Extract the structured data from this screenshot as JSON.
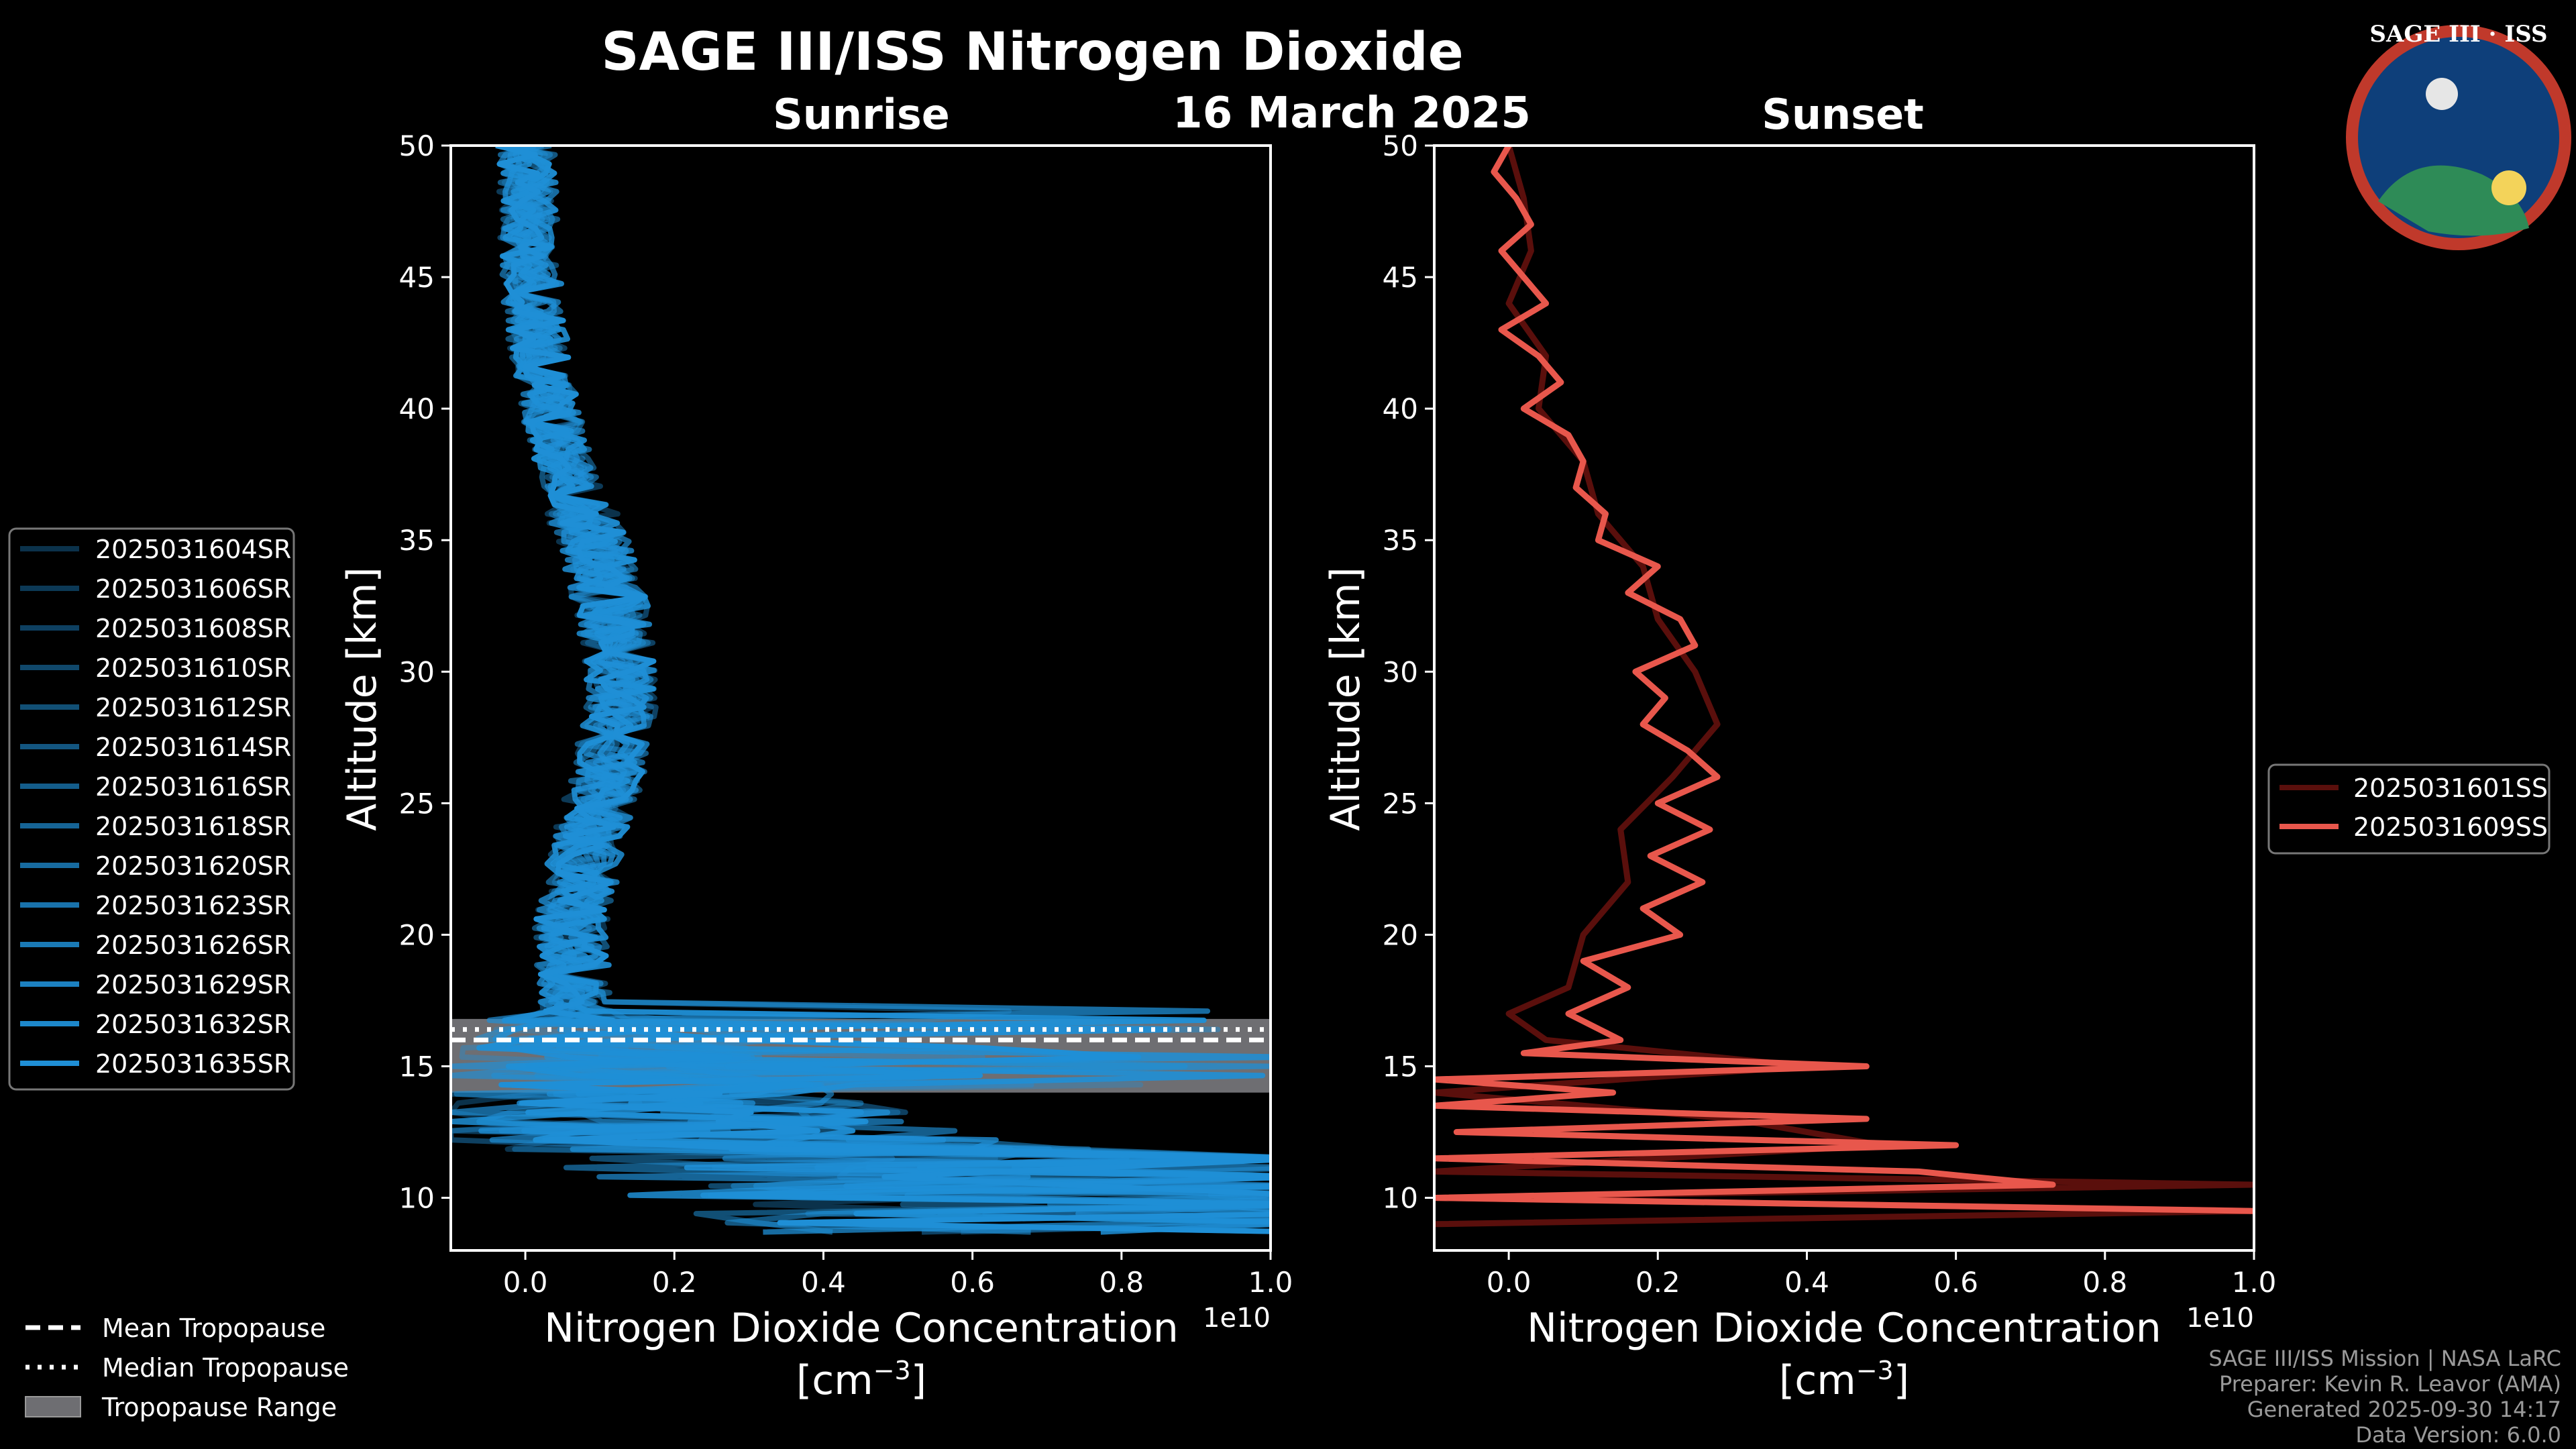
{
  "figure": {
    "title": "SAGE III/ISS Nitrogen Dioxide",
    "date": "16 March 2025",
    "logo_text": "SAGE III · ISS",
    "credits": [
      "SAGE III/ISS Mission | NASA LaRC",
      "Preparer: Kevin R. Leavor (AMA)",
      "Generated 2025-09-30 14:17",
      "Data Version: 6.0.0"
    ]
  },
  "shared_legend": {
    "mean_label": "Mean Tropopause",
    "median_label": "Median Tropopause",
    "range_label": "Tropopause Range"
  },
  "colors": {
    "sunrise": "#1f8fd6",
    "sunset": "#e8574c",
    "tropopause_range": "#6e6e72"
  },
  "chart_data": [
    {
      "type": "line",
      "panel": "Sunrise",
      "title": "Sunrise",
      "xlabel": "Nitrogen Dioxide Concentration",
      "xlabel_unit": "[cm",
      "xlabel_unit_exp": "−3",
      "xlabel_unit_close": "]",
      "x_scale_label": "1e10",
      "ylabel": "Altitude [km]",
      "xlim": [
        -0.1,
        1.0
      ],
      "ylim": [
        8,
        50
      ],
      "xticks": [
        0.0,
        0.2,
        0.4,
        0.6,
        0.8,
        1.0
      ],
      "xtick_labels": [
        "0.0",
        "0.2",
        "0.4",
        "0.6",
        "0.8",
        "1.0"
      ],
      "yticks": [
        10,
        15,
        20,
        25,
        30,
        35,
        40,
        45,
        50
      ],
      "ytick_labels": [
        "10",
        "15",
        "20",
        "25",
        "30",
        "35",
        "40",
        "45",
        "50"
      ],
      "legend_position": "left",
      "tropopause": {
        "mean": 16.0,
        "median": 16.4,
        "range": [
          14.0,
          16.8
        ]
      },
      "profile_shape": {
        "altitudes": [
          50,
          47,
          44,
          41,
          38,
          35,
          32,
          29,
          26,
          23,
          20,
          17,
          15,
          13,
          11,
          9
        ],
        "values": [
          0.0,
          0.005,
          0.01,
          0.025,
          0.05,
          0.09,
          0.12,
          0.13,
          0.11,
          0.08,
          0.06,
          0.07,
          0.12,
          0.2,
          0.45,
          0.85
        ]
      },
      "series": [
        {
          "name": "2025031604SR"
        },
        {
          "name": "2025031606SR"
        },
        {
          "name": "2025031608SR"
        },
        {
          "name": "2025031610SR"
        },
        {
          "name": "2025031612SR"
        },
        {
          "name": "2025031614SR"
        },
        {
          "name": "2025031616SR"
        },
        {
          "name": "2025031618SR"
        },
        {
          "name": "2025031620SR"
        },
        {
          "name": "2025031623SR"
        },
        {
          "name": "2025031626SR"
        },
        {
          "name": "2025031629SR"
        },
        {
          "name": "2025031632SR"
        },
        {
          "name": "2025031635SR"
        }
      ]
    },
    {
      "type": "line",
      "panel": "Sunset",
      "title": "Sunset",
      "xlabel": "Nitrogen Dioxide Concentration",
      "xlabel_unit": "[cm",
      "xlabel_unit_exp": "−3",
      "xlabel_unit_close": "]",
      "x_scale_label": "1e10",
      "ylabel": "Altitude [km]",
      "xlim": [
        -0.1,
        1.0
      ],
      "ylim": [
        8,
        50
      ],
      "xticks": [
        0.0,
        0.2,
        0.4,
        0.6,
        0.8,
        1.0
      ],
      "xtick_labels": [
        "0.0",
        "0.2",
        "0.4",
        "0.6",
        "0.8",
        "1.0"
      ],
      "yticks": [
        10,
        15,
        20,
        25,
        30,
        35,
        40,
        45,
        50
      ],
      "ytick_labels": [
        "10",
        "15",
        "20",
        "25",
        "30",
        "35",
        "40",
        "45",
        "50"
      ],
      "legend_position": "right",
      "series": [
        {
          "name": "2025031601SS",
          "altitudes": [
            50,
            48,
            46,
            44,
            42,
            40,
            38,
            36,
            34,
            32,
            30,
            28,
            26,
            24,
            22,
            20,
            18,
            17,
            16,
            15,
            14,
            13,
            12,
            11,
            10.5,
            10,
            9.5,
            9
          ],
          "values": [
            0.0,
            0.02,
            0.03,
            0.0,
            0.05,
            0.04,
            0.1,
            0.12,
            0.18,
            0.2,
            0.25,
            0.28,
            0.22,
            0.15,
            0.16,
            0.1,
            0.08,
            0.0,
            0.05,
            0.4,
            -0.1,
            0.3,
            0.5,
            -0.1,
            1.0,
            -0.1,
            1.0,
            -0.1
          ]
        },
        {
          "name": "2025031609SS",
          "altitudes": [
            50,
            49,
            48,
            47,
            46,
            45,
            44,
            43,
            42,
            41,
            40,
            39,
            38,
            37,
            36,
            35,
            34,
            33,
            32,
            31,
            30,
            29,
            28,
            27,
            26,
            25,
            24,
            23,
            22,
            21,
            20,
            19,
            18,
            17,
            16,
            15.5,
            15,
            14.5,
            14,
            13.5,
            13,
            12.5,
            12,
            11.5,
            11,
            10.5,
            10,
            9.5
          ],
          "values": [
            0.0,
            -0.02,
            0.01,
            0.03,
            -0.01,
            0.02,
            0.05,
            -0.01,
            0.04,
            0.07,
            0.02,
            0.08,
            0.1,
            0.09,
            0.13,
            0.12,
            0.2,
            0.16,
            0.23,
            0.25,
            0.17,
            0.21,
            0.18,
            0.24,
            0.28,
            0.2,
            0.27,
            0.19,
            0.26,
            0.18,
            0.23,
            0.1,
            0.16,
            0.08,
            0.15,
            0.02,
            0.48,
            -0.1,
            0.14,
            -0.1,
            0.48,
            -0.07,
            0.6,
            -0.1,
            0.55,
            0.73,
            -0.1,
            1.0
          ]
        }
      ]
    }
  ]
}
